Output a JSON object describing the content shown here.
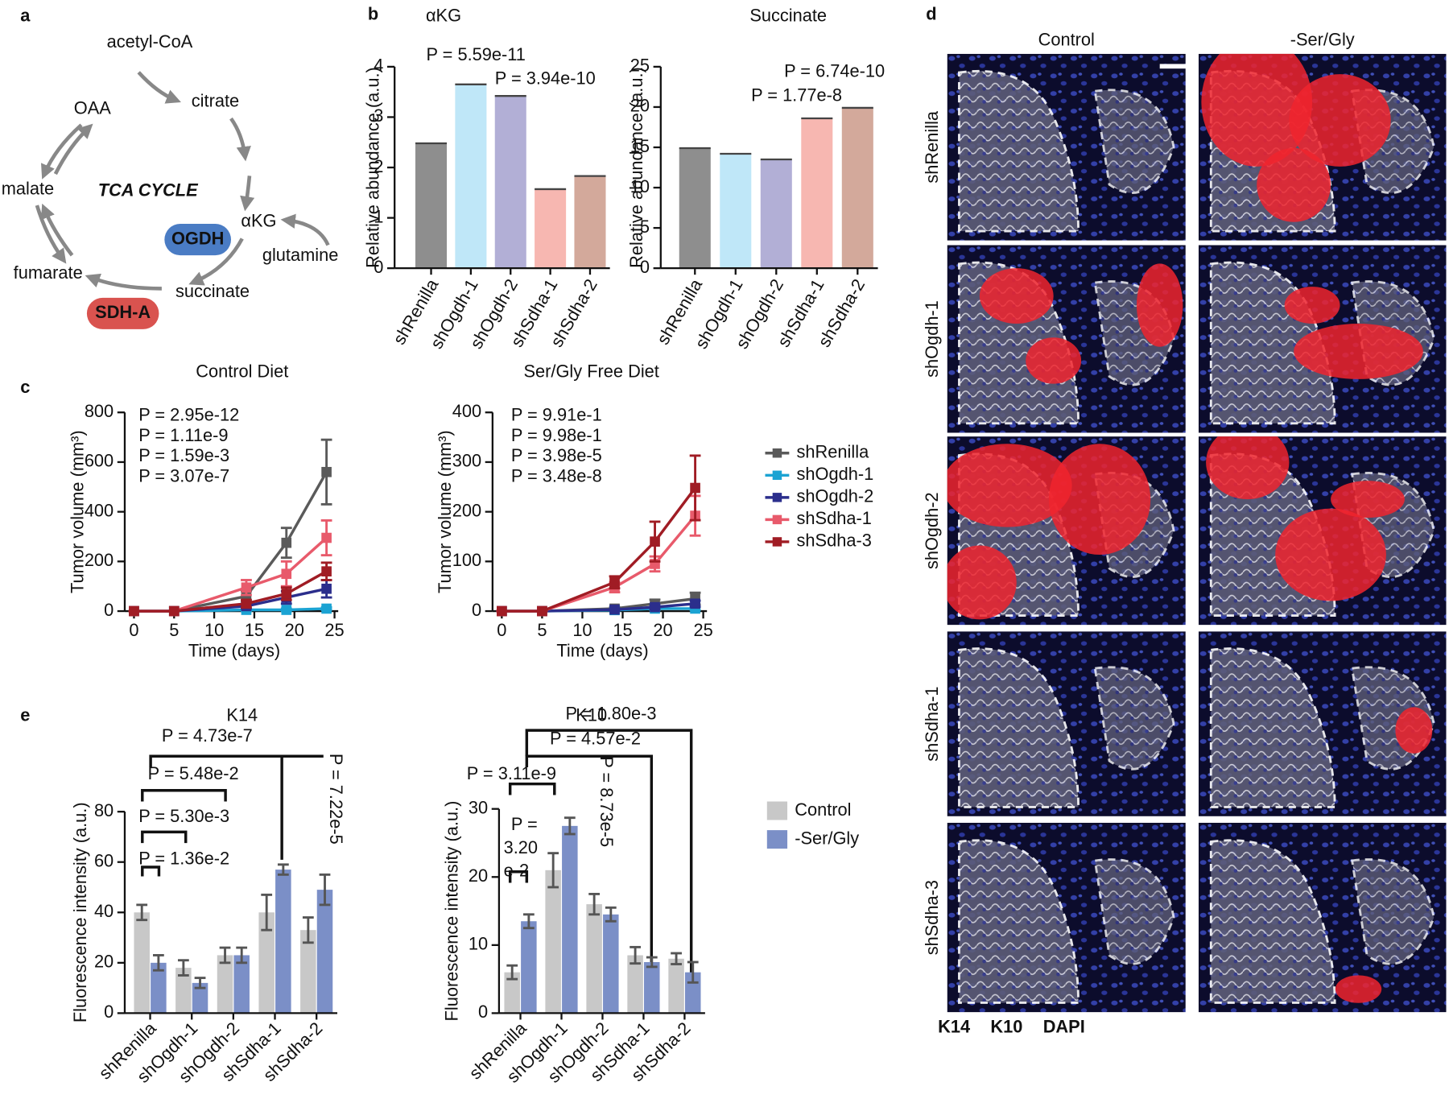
{
  "panel_labels": [
    "a",
    "b",
    "c",
    "d",
    "e"
  ],
  "tca_diagram": {
    "labels": [
      "acetyl-CoA",
      "citrate",
      "OAA",
      "malate",
      "TCA CYCLE",
      "αKG",
      "OGDH",
      "glutamine",
      "fumarate",
      "succinate",
      "SDH-A"
    ]
  },
  "chart_data": [
    {
      "type": "bar",
      "title": "αKG",
      "ylabel": "Relative abundance (a.u.)",
      "categories": [
        "shRenilla",
        "shOgdh-1",
        "shOgdh-2",
        "shSdha-1",
        "shSdha-2"
      ],
      "values": [
        2.48,
        3.65,
        3.42,
        1.57,
        1.83
      ],
      "colors": [
        "#8e8e8e",
        "#bfe7f8",
        "#b2afd6",
        "#f7b7b1",
        "#d3a99b"
      ],
      "ylim": [
        0,
        4
      ],
      "yticks": [
        0,
        1,
        2,
        3,
        4
      ],
      "annotations": [
        "P = 5.59e-11",
        "P = 3.94e-10"
      ]
    },
    {
      "type": "bar",
      "title": "Succinate",
      "ylabel": "Relative abundance (a.u.)",
      "categories": [
        "shRenilla",
        "shOgdh-1",
        "shOgdh-2",
        "shSdha-1",
        "shSdha-2"
      ],
      "values": [
        14.9,
        14.2,
        13.5,
        18.6,
        19.9
      ],
      "colors": [
        "#8e8e8e",
        "#bfe7f8",
        "#b2afd6",
        "#f7b7b1",
        "#d3a99b"
      ],
      "ylim": [
        0,
        25
      ],
      "yticks": [
        0,
        5,
        10,
        15,
        20,
        25
      ],
      "annotations": [
        "P = 6.74e-10",
        "P = 1.77e-8"
      ]
    },
    {
      "type": "line",
      "title": "Control Diet",
      "xlabel": "Time (days)",
      "ylabel": "Tumor volume (mm³)",
      "x": [
        0,
        5,
        14,
        19,
        24
      ],
      "series": [
        {
          "name": "shRenilla",
          "color": "#5a5a5a",
          "values": [
            0,
            0,
            60,
            275,
            560
          ],
          "errors": [
            0,
            0,
            20,
            60,
            130
          ]
        },
        {
          "name": "shOgdh-1",
          "color": "#1ba3d3",
          "values": [
            0,
            0,
            5,
            5,
            10
          ],
          "errors": [
            0,
            0,
            5,
            5,
            5
          ]
        },
        {
          "name": "shOgdh-2",
          "color": "#2b2e8c",
          "values": [
            0,
            0,
            20,
            55,
            90
          ],
          "errors": [
            0,
            0,
            10,
            25,
            35
          ]
        },
        {
          "name": "shSdha-1",
          "color": "#e85a6b",
          "values": [
            0,
            0,
            95,
            150,
            295
          ],
          "errors": [
            0,
            0,
            30,
            50,
            70
          ]
        },
        {
          "name": "shSdha-3",
          "color": "#a01c24",
          "values": [
            0,
            0,
            30,
            70,
            160
          ],
          "errors": [
            0,
            0,
            15,
            25,
            35
          ]
        }
      ],
      "xlim": [
        0,
        25
      ],
      "xticks": [
        0,
        5,
        10,
        15,
        20,
        25
      ],
      "ylim": [
        0,
        800
      ],
      "yticks": [
        0,
        200,
        400,
        600,
        800
      ],
      "annotations": [
        {
          "text": "P = 2.95e-12",
          "color": "#1ba3d3"
        },
        {
          "text": "P = 1.11e-9",
          "color": "#2b2e8c"
        },
        {
          "text": "P = 1.59e-3",
          "color": "#e85a6b"
        },
        {
          "text": "P = 3.07e-7",
          "color": "#a01c24"
        }
      ],
      "legend": "right"
    },
    {
      "type": "line",
      "title": "Ser/Gly Free Diet",
      "xlabel": "Time (days)",
      "ylabel": "Tumor volume (mm³)",
      "x": [
        0,
        5,
        14,
        19,
        24
      ],
      "series": [
        {
          "color": "#5a5a5a",
          "values": [
            0,
            0,
            5,
            15,
            25
          ],
          "errors": [
            0,
            0,
            3,
            8,
            12
          ]
        },
        {
          "color": "#1ba3d3",
          "values": [
            0,
            0,
            2,
            5,
            5
          ],
          "errors": [
            0,
            0,
            2,
            3,
            3
          ]
        },
        {
          "color": "#2b2e8c",
          "values": [
            0,
            0,
            3,
            8,
            15
          ],
          "errors": [
            0,
            0,
            2,
            4,
            6
          ]
        },
        {
          "color": "#e85a6b",
          "values": [
            0,
            0,
            48,
            95,
            192
          ],
          "errors": [
            0,
            0,
            10,
            15,
            40
          ]
        },
        {
          "color": "#a01c24",
          "values": [
            0,
            0,
            58,
            140,
            248
          ],
          "errors": [
            0,
            0,
            12,
            40,
            65
          ]
        }
      ],
      "xlim": [
        0,
        25
      ],
      "xticks": [
        0,
        5,
        10,
        15,
        20,
        25
      ],
      "ylim": [
        0,
        400
      ],
      "yticks": [
        0,
        100,
        200,
        300,
        400
      ],
      "annotations": [
        {
          "text": "P = 9.91e-1",
          "color": "#1ba3d3"
        },
        {
          "text": "P = 9.98e-1",
          "color": "#2b2e8c"
        },
        {
          "text": "P = 3.98e-5",
          "color": "#e85a6b"
        },
        {
          "text": "P = 3.48e-8",
          "color": "#a01c24"
        }
      ]
    },
    {
      "type": "bar",
      "title": "K14",
      "ylabel": "Fluorescence intensity (a.u.)",
      "categories": [
        "shRenilla",
        "shOgdh-1",
        "shOgdh-2",
        "shSdha-1",
        "shSdha-2"
      ],
      "series": [
        {
          "color": "#c8c8c8",
          "values": [
            40,
            18,
            23,
            40,
            33
          ],
          "errors": [
            3,
            3,
            3,
            7,
            5
          ]
        },
        {
          "color": "#7b8fc7",
          "values": [
            20,
            12,
            23,
            57,
            49
          ],
          "errors": [
            3,
            2,
            3,
            2,
            6
          ]
        }
      ],
      "ylim": [
        0,
        80
      ],
      "yticks": [
        0,
        20,
        40,
        60,
        80
      ],
      "annotations": [
        "P = 1.36e-2",
        "P = 5.30e-3",
        "P = 5.48e-2",
        "P = 4.73e-7",
        "P = 7.22e-5"
      ]
    },
    {
      "type": "bar",
      "title": "K10",
      "ylabel": "Fluorescence intensity (a.u.)",
      "categories": [
        "shRenilla",
        "shOgdh-1",
        "shOgdh-2",
        "shSdha-1",
        "shSdha-2"
      ],
      "series": [
        {
          "name": "Control",
          "color": "#c8c8c8",
          "values": [
            6,
            21,
            16,
            8.5,
            8
          ],
          "errors": [
            1,
            2.5,
            1.5,
            1.2,
            0.8
          ]
        },
        {
          "name": "-Ser/Gly",
          "color": "#7b8fc7",
          "values": [
            13.5,
            27.5,
            14.5,
            7.5,
            6
          ],
          "errors": [
            1,
            1.2,
            1,
            0.7,
            1.5
          ]
        }
      ],
      "ylim": [
        0,
        30
      ],
      "yticks": [
        0,
        10,
        20,
        30
      ],
      "annotations": [
        "P = 3.11e-9",
        "P = 4.57e-2",
        "P = 1.80e-3",
        "P =",
        "3.20",
        "e-2",
        "P = 8.73e-5"
      ],
      "legend": "right"
    }
  ],
  "micrographs": {
    "columns": [
      "Control",
      "-Ser/Gly"
    ],
    "rows": [
      "shRenilla",
      "shOgdh-1",
      "shOgdh-2",
      "shSdha-1",
      "shSdha-3"
    ],
    "stain_legend": [
      {
        "text": "K14",
        "color": "#a0a0a0"
      },
      {
        "text": "K10",
        "color": "#e8262a"
      },
      {
        "text": "DAPI",
        "color": "#2e3192"
      }
    ]
  }
}
